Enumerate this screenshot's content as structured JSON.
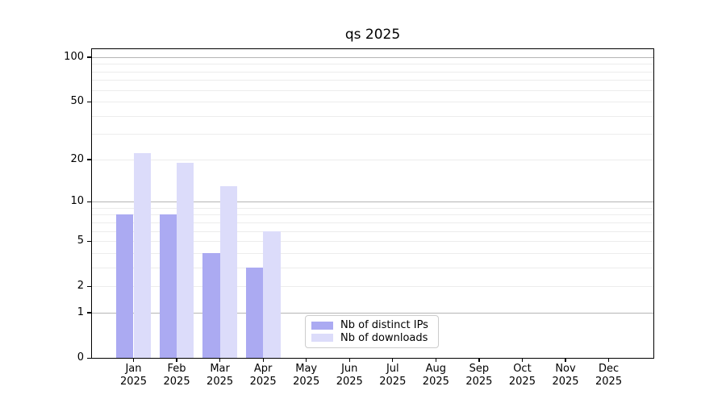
{
  "chart_data": {
    "type": "bar",
    "title": "qs 2025",
    "year_label": "2025",
    "categories": [
      "Jan",
      "Feb",
      "Mar",
      "Apr",
      "May",
      "Jun",
      "Jul",
      "Aug",
      "Sep",
      "Oct",
      "Nov",
      "Dec"
    ],
    "series": [
      {
        "name": "Nb of distinct IPs",
        "color": "#abaaf2",
        "values": [
          8,
          8,
          4,
          3,
          0,
          0,
          0,
          0,
          0,
          0,
          0,
          0
        ]
      },
      {
        "name": "Nb of downloads",
        "color": "#dcdcfa",
        "values": [
          22,
          19,
          13,
          6,
          0,
          0,
          0,
          0,
          0,
          0,
          0,
          0
        ]
      }
    ],
    "yscale": "log1p",
    "ylim": [
      0,
      113
    ],
    "yticks": [
      0,
      1,
      2,
      5,
      10,
      20,
      50,
      100
    ],
    "y_major_grid": [
      1,
      10,
      100
    ],
    "y_minor_grid": [
      2,
      3,
      4,
      5,
      6,
      7,
      8,
      9,
      20,
      30,
      40,
      50,
      60,
      70,
      80,
      90
    ],
    "grid_major_color": "#b5b5b5",
    "grid_minor_color": "#ececec",
    "legend_position": "lower center",
    "xlabel": "",
    "ylabel": ""
  }
}
